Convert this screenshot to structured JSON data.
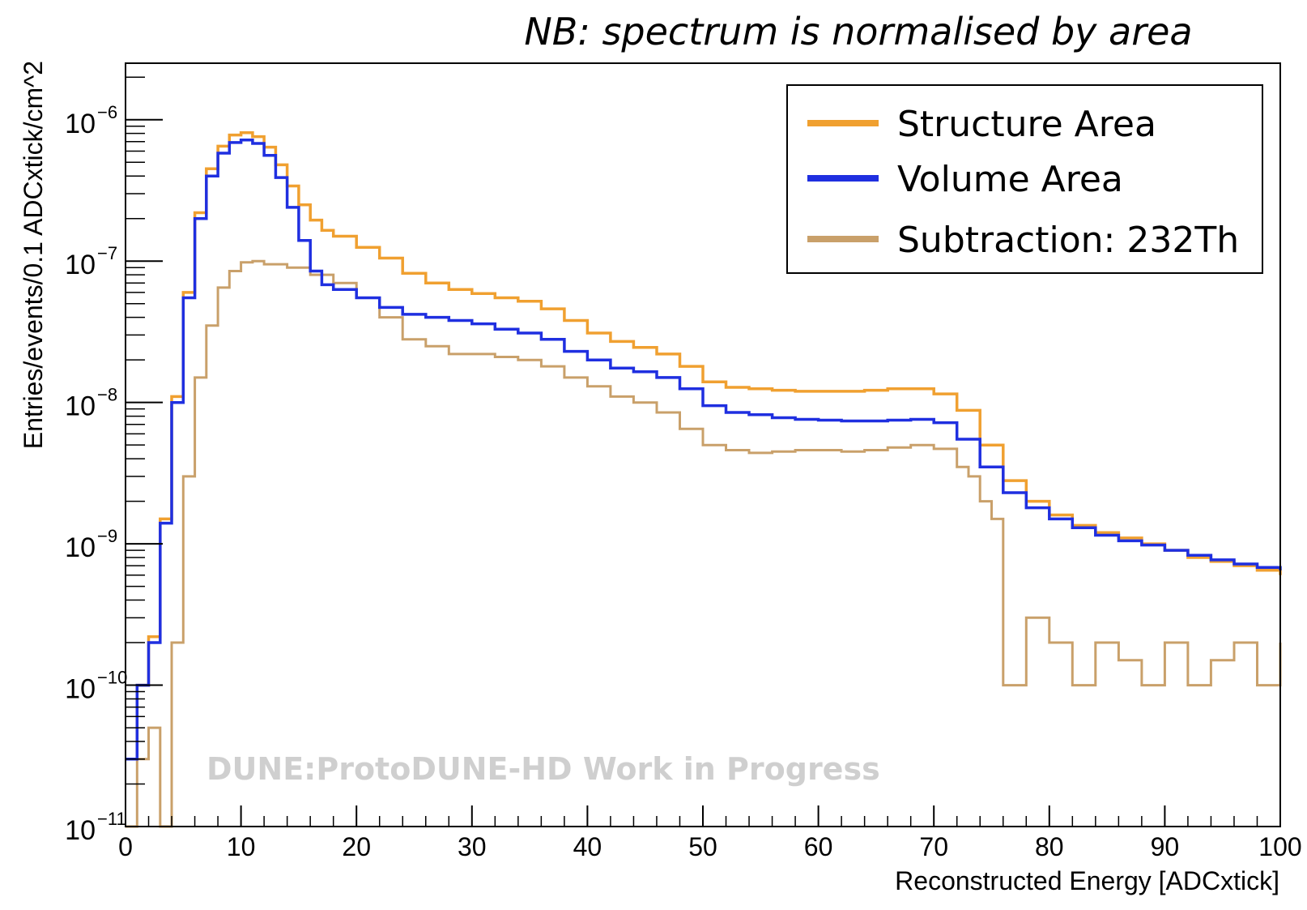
{
  "chart_data": {
    "type": "line",
    "note": "NB: spectrum is normalised by area",
    "xlabel": "Reconstructed Energy [ADCxtick]",
    "ylabel": "Entries/events/0.1 ADCxtick/cm^2",
    "xlim": [
      0,
      100
    ],
    "ylim_log10": [
      -11,
      -5.6
    ],
    "yscale": "log",
    "x_ticks": [
      0,
      10,
      20,
      30,
      40,
      50,
      60,
      70,
      80,
      90,
      100
    ],
    "x_tick_labels": [
      "0",
      "10",
      "20",
      "30",
      "40",
      "50",
      "60",
      "70",
      "80",
      "90",
      "100"
    ],
    "y_tick_exponents": [
      -11,
      -10,
      -9,
      -8,
      -7,
      -6
    ],
    "y_tick_base": "10",
    "y_tick_labels": [
      "−11",
      "−10",
      "−9",
      "−8",
      "−7",
      "−6"
    ],
    "watermark": "DUNE:ProtoDUNE-HD Work in Progress",
    "legend_position": "top-right",
    "series": [
      {
        "name": "Structure Area",
        "color": "#f0a030",
        "x": [
          0,
          1,
          2,
          3,
          4,
          5,
          6,
          7,
          8,
          9,
          10,
          11,
          12,
          13,
          14,
          15,
          16,
          17,
          18,
          20,
          22,
          24,
          26,
          28,
          30,
          32,
          34,
          36,
          38,
          40,
          42,
          44,
          46,
          48,
          50,
          52,
          54,
          56,
          58,
          60,
          62,
          64,
          66,
          68,
          70,
          72,
          74,
          76,
          78,
          80,
          82,
          84,
          86,
          88,
          90,
          92,
          94,
          96,
          98,
          100
        ],
        "y": [
          3e-11,
          1e-10,
          2.2e-10,
          1.5e-09,
          1.1e-08,
          6e-08,
          2.2e-07,
          4.5e-07,
          6.5e-07,
          7.8e-07,
          8.1e-07,
          7.6e-07,
          6.4e-07,
          4.8e-07,
          3.4e-07,
          2.5e-07,
          1.95e-07,
          1.65e-07,
          1.5e-07,
          1.25e-07,
          1.05e-07,
          8.2e-08,
          7e-08,
          6.3e-08,
          5.9e-08,
          5.5e-08,
          5.2e-08,
          4.6e-08,
          3.8e-08,
          3.1e-08,
          2.7e-08,
          2.45e-08,
          2.2e-08,
          1.8e-08,
          1.4e-08,
          1.28e-08,
          1.25e-08,
          1.22e-08,
          1.2e-08,
          1.2e-08,
          1.2e-08,
          1.22e-08,
          1.25e-08,
          1.25e-08,
          1.15e-08,
          8.8e-09,
          5e-09,
          2.8e-09,
          2e-09,
          1.6e-09,
          1.35e-09,
          1.2e-09,
          1.1e-09,
          1e-09,
          9e-10,
          8e-10,
          7.5e-10,
          7e-10,
          6.5e-10,
          6e-10
        ]
      },
      {
        "name": "Volume Area",
        "color": "#1f2fe0",
        "x": [
          0,
          1,
          2,
          3,
          4,
          5,
          6,
          7,
          8,
          9,
          10,
          11,
          12,
          13,
          14,
          15,
          16,
          17,
          18,
          20,
          22,
          24,
          26,
          28,
          30,
          32,
          34,
          36,
          38,
          40,
          42,
          44,
          46,
          48,
          50,
          52,
          54,
          56,
          58,
          60,
          62,
          64,
          66,
          68,
          70,
          72,
          74,
          76,
          78,
          80,
          82,
          84,
          86,
          88,
          90,
          92,
          94,
          96,
          98,
          100
        ],
        "y": [
          3e-11,
          1e-10,
          2e-10,
          1.4e-09,
          1e-08,
          5.5e-08,
          2e-07,
          4e-07,
          5.8e-07,
          6.9e-07,
          7.2e-07,
          6.8e-07,
          5.6e-07,
          3.9e-07,
          2.4e-07,
          1.4e-07,
          8.5e-08,
          6.8e-08,
          6.3e-08,
          5.5e-08,
          4.7e-08,
          4.2e-08,
          4e-08,
          3.8e-08,
          3.6e-08,
          3.3e-08,
          3.1e-08,
          2.8e-08,
          2.3e-08,
          2e-08,
          1.75e-08,
          1.65e-08,
          1.5e-08,
          1.25e-08,
          9.5e-09,
          8.5e-09,
          8.2e-09,
          7.8e-09,
          7.6e-09,
          7.5e-09,
          7.4e-09,
          7.4e-09,
          7.5e-09,
          7.6e-09,
          7.2e-09,
          5.5e-09,
          3.5e-09,
          2.3e-09,
          1.8e-09,
          1.5e-09,
          1.3e-09,
          1.15e-09,
          1.05e-09,
          9.8e-10,
          9e-10,
          8.3e-10,
          7.7e-10,
          7.2e-10,
          6.8e-10,
          6.5e-10
        ]
      },
      {
        "name": "Subtraction: 232Th",
        "color": "#c9a06a",
        "x": [
          0,
          1,
          2,
          3,
          3.5,
          4,
          5,
          6,
          7,
          8,
          9,
          10,
          11,
          12,
          14,
          16,
          18,
          20,
          22,
          24,
          26,
          28,
          30,
          32,
          34,
          36,
          38,
          40,
          42,
          44,
          46,
          48,
          50,
          52,
          54,
          56,
          58,
          60,
          62,
          64,
          66,
          68,
          70,
          72,
          73,
          74,
          75,
          76,
          78,
          80,
          82,
          84,
          86,
          88,
          90,
          92,
          94,
          96,
          98,
          100
        ],
        "y": [
          1e-11,
          3e-11,
          5e-11,
          1e-11,
          1e-11,
          2e-10,
          3e-09,
          1.5e-08,
          3.5e-08,
          6.5e-08,
          8.5e-08,
          9.8e-08,
          1e-07,
          9.5e-08,
          9e-08,
          8e-08,
          7e-08,
          5.5e-08,
          4e-08,
          2.8e-08,
          2.5e-08,
          2.2e-08,
          2.2e-08,
          2.1e-08,
          2e-08,
          1.8e-08,
          1.5e-08,
          1.3e-08,
          1.1e-08,
          1e-08,
          8.5e-09,
          6.5e-09,
          5e-09,
          4.6e-09,
          4.4e-09,
          4.5e-09,
          4.6e-09,
          4.6e-09,
          4.5e-09,
          4.6e-09,
          4.8e-09,
          5e-09,
          4.7e-09,
          3.5e-09,
          3e-09,
          2e-09,
          1.5e-09,
          1e-10,
          3e-10,
          2e-10,
          1e-10,
          2e-10,
          1.5e-10,
          1e-10,
          2e-10,
          1e-10,
          1.5e-10,
          2e-10,
          1e-10,
          2e-10
        ]
      }
    ]
  }
}
